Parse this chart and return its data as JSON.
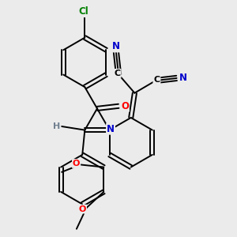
{
  "background_color": "#ebebeb",
  "bond_color": "#000000",
  "atom_colors": {
    "Cl": "#008000",
    "O": "#ff0000",
    "N": "#0000cc",
    "C": "#000000",
    "H": "#708090"
  },
  "figsize": [
    3.0,
    3.0
  ],
  "dpi": 100
}
